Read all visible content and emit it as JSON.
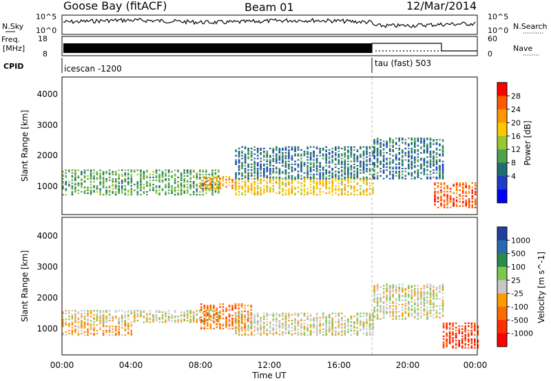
{
  "header": {
    "site": "Goose Bay (fitACF)",
    "beam": "Beam 01",
    "date": "12/Mar/2014"
  },
  "top_panels": {
    "nsky_label": "N.Sky",
    "nsky_ticks": [
      "10^5",
      "10^0"
    ],
    "nsearch_label": "N.Search",
    "freq_label_1": "Freq.",
    "freq_label_2": "[MHz]",
    "freq_ticks": [
      "18",
      "8"
    ],
    "nave_ticks": [
      "60",
      "0"
    ],
    "nave_label": "Nave",
    "cpid_label": "CPID",
    "cpid_1": "icescan -1200",
    "cpid_2": "tau (fast) 503"
  },
  "axes": {
    "ylabel": "Slant Range [km]",
    "yticks": [
      "1000",
      "2000",
      "3000",
      "4000"
    ],
    "xticks": [
      "00:00",
      "04:00",
      "08:00",
      "12:00",
      "16:00",
      "20:00",
      "00:00"
    ],
    "xlabel": "Time UT"
  },
  "power_colorbar": {
    "label": "Power [dB]",
    "ticks": [
      "28",
      "24",
      "20",
      "16",
      "12",
      "8",
      "4"
    ],
    "colors": [
      "#ff0000",
      "#ff5a00",
      "#ff9600",
      "#ffc800",
      "#96c832",
      "#50a050",
      "#1e6e6e",
      "#1e3cc8",
      "#0000ff"
    ]
  },
  "velocity_colorbar": {
    "label": "Velocity [m s^-1]",
    "ticks": [
      "1000",
      "500",
      "100",
      "25",
      "-25",
      "-100",
      "-500",
      "-1000"
    ],
    "colors": [
      "#2040a0",
      "#2a6ab0",
      "#2a8a4a",
      "#7ac850",
      "#c8c8c8",
      "#ff9a00",
      "#ff6a00",
      "#ff3000",
      "#ff0000"
    ]
  },
  "chart_data": [
    {
      "type": "heatmap",
      "title": "",
      "xlabel": "Time UT",
      "ylabel": "Slant Range [km]",
      "xlim": [
        "00:00",
        "24:00"
      ],
      "ylim": [
        200,
        4500
      ],
      "colorbar_label": "Power [dB]",
      "colorbar_range": [
        0,
        32
      ],
      "regions": [
        {
          "t": [
            0,
            9
          ],
          "r": [
            800,
            1600
          ],
          "value": 14
        },
        {
          "t": [
            8,
            10
          ],
          "r": [
            1000,
            1400
          ],
          "value": 24
        },
        {
          "t": [
            10,
            18
          ],
          "r": [
            800,
            1300
          ],
          "value": 20
        },
        {
          "t": [
            10,
            18
          ],
          "r": [
            1300,
            2300
          ],
          "value": 10
        },
        {
          "t": [
            18,
            22
          ],
          "r": [
            1300,
            2600
          ],
          "value": 8
        },
        {
          "t": [
            21.5,
            24
          ],
          "r": [
            400,
            1200
          ],
          "value": 28
        }
      ]
    },
    {
      "type": "heatmap",
      "title": "",
      "xlabel": "Time UT",
      "ylabel": "Slant Range [km]",
      "xlim": [
        "00:00",
        "24:00"
      ],
      "ylim": [
        200,
        4500
      ],
      "colorbar_label": "Velocity [m s^-1]",
      "colorbar_range": [
        -1000,
        1000
      ],
      "regions": [
        {
          "t": [
            0,
            4
          ],
          "r": [
            800,
            1200
          ],
          "value": -300
        },
        {
          "t": [
            0,
            9
          ],
          "r": [
            1200,
            1600
          ],
          "value": 100
        },
        {
          "t": [
            8,
            11
          ],
          "r": [
            1000,
            1800
          ],
          "value": -400
        },
        {
          "t": [
            10,
            18
          ],
          "r": [
            800,
            1500
          ],
          "value": 0
        },
        {
          "t": [
            18,
            22
          ],
          "r": [
            1300,
            2400
          ],
          "value": 0
        },
        {
          "t": [
            22,
            24
          ],
          "r": [
            400,
            1200
          ],
          "value": -800
        }
      ]
    }
  ]
}
